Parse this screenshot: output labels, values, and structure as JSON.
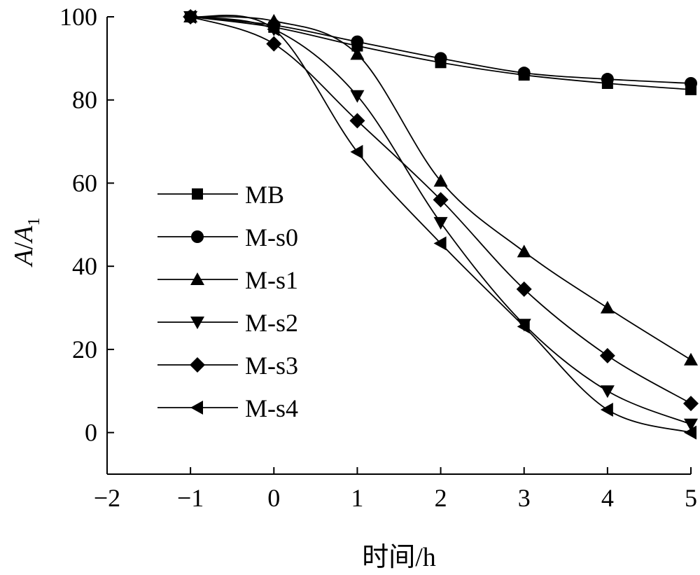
{
  "chart_data": {
    "type": "line",
    "title": "",
    "xlabel": "时间/h",
    "ylabel_main": "A",
    "ylabel_sep": "/",
    "ylabel_sub_base": "A",
    "ylabel_sub": "1",
    "xlim": [
      -2,
      5
    ],
    "ylim": [
      -10,
      100
    ],
    "xticks": [
      -2,
      -1,
      0,
      1,
      2,
      3,
      4,
      5
    ],
    "xtick_labels": [
      "−2",
      "−1",
      "0",
      "1",
      "2",
      "3",
      "4",
      "5"
    ],
    "yticks": [
      0,
      20,
      40,
      60,
      80,
      100
    ],
    "ytick_labels": [
      "0",
      "20",
      "40",
      "60",
      "80",
      "100"
    ],
    "grid": false,
    "legend_position": "center-left",
    "x": [
      -1,
      0,
      1,
      2,
      3,
      4,
      5
    ],
    "series": [
      {
        "name": "MB",
        "marker": "square",
        "values": [
          100,
          97.5,
          93,
          89,
          86,
          84,
          82.5
        ]
      },
      {
        "name": "M-s0",
        "marker": "circle",
        "values": [
          100,
          98,
          94,
          90,
          86.5,
          85,
          84
        ]
      },
      {
        "name": "M-s1",
        "marker": "triangle-up",
        "values": [
          100,
          99,
          91,
          60.5,
          43.5,
          30,
          17.5
        ]
      },
      {
        "name": "M-s2",
        "marker": "triangle-down",
        "values": [
          100,
          97,
          81,
          50.5,
          26,
          10,
          2
        ]
      },
      {
        "name": "M-s3",
        "marker": "diamond",
        "values": [
          100,
          93.5,
          75,
          56,
          34.5,
          18.5,
          7
        ]
      },
      {
        "name": "M-s4",
        "marker": "triangle-left",
        "values": [
          100,
          97,
          67.5,
          45.5,
          25.5,
          5.5,
          0
        ]
      }
    ]
  }
}
